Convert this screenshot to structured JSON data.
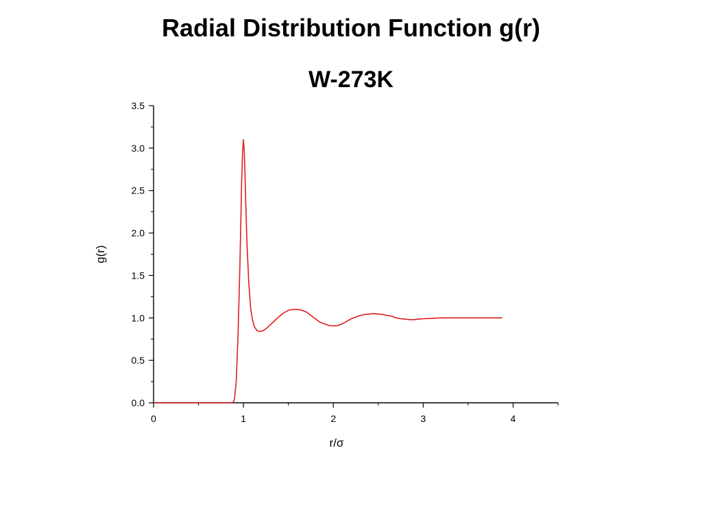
{
  "slide": {
    "title": "Radial Distribution Function g(r)",
    "subtitle": "W-273K"
  },
  "colors": {
    "series": "#dd1c1c",
    "axis": "#000000",
    "background": "#ffffff"
  },
  "chart_data": {
    "type": "line",
    "xlabel": "r/σ",
    "ylabel": "g(r)",
    "xlim": [
      0,
      4.5
    ],
    "ylim": [
      0,
      3.5
    ],
    "x_ticks": [
      0,
      1,
      2,
      3,
      4
    ],
    "x_tick_labels": [
      "0",
      "1",
      "2",
      "3",
      "4"
    ],
    "y_ticks": [
      0,
      0.5,
      1,
      1.5,
      2,
      2.5,
      3,
      3.5
    ],
    "y_tick_labels": [
      "0.0",
      "0.5",
      "1.0",
      "1.5",
      "2.0",
      "2.5",
      "3.0",
      "3.5"
    ],
    "grid": false,
    "legend": "none",
    "series": [
      {
        "x": [
          0,
          0.5,
          0.88,
          0.9,
          0.92,
          0.94,
          0.96,
          0.97,
          0.98,
          0.99,
          1.0,
          1.01,
          1.02,
          1.03,
          1.04,
          1.06,
          1.08,
          1.1,
          1.12,
          1.15,
          1.18,
          1.22,
          1.26,
          1.3,
          1.35,
          1.4,
          1.45,
          1.5,
          1.55,
          1.6,
          1.65,
          1.7,
          1.75,
          1.8,
          1.85,
          1.9,
          1.95,
          2.0,
          2.05,
          2.1,
          2.15,
          2.2,
          2.25,
          2.3,
          2.35,
          2.4,
          2.45,
          2.5,
          2.55,
          2.6,
          2.65,
          2.7,
          2.75,
          2.8,
          2.85,
          2.9,
          2.95,
          3.0,
          3.1,
          3.2,
          3.3,
          3.4,
          3.5,
          3.6,
          3.7,
          3.8,
          3.88
        ],
        "values": [
          0,
          0,
          0,
          0.04,
          0.25,
          0.8,
          1.6,
          2.1,
          2.6,
          2.95,
          3.1,
          2.95,
          2.6,
          2.2,
          1.85,
          1.4,
          1.12,
          0.98,
          0.9,
          0.85,
          0.84,
          0.85,
          0.88,
          0.92,
          0.97,
          1.02,
          1.06,
          1.09,
          1.1,
          1.1,
          1.09,
          1.07,
          1.03,
          0.99,
          0.95,
          0.93,
          0.91,
          0.905,
          0.91,
          0.93,
          0.96,
          0.99,
          1.01,
          1.03,
          1.04,
          1.045,
          1.05,
          1.045,
          1.04,
          1.03,
          1.02,
          1.0,
          0.99,
          0.985,
          0.98,
          0.98,
          0.985,
          0.99,
          0.995,
          1.0,
          1.0,
          1.0,
          1.0,
          1.0,
          1.0,
          1.0,
          1.0
        ]
      }
    ]
  }
}
